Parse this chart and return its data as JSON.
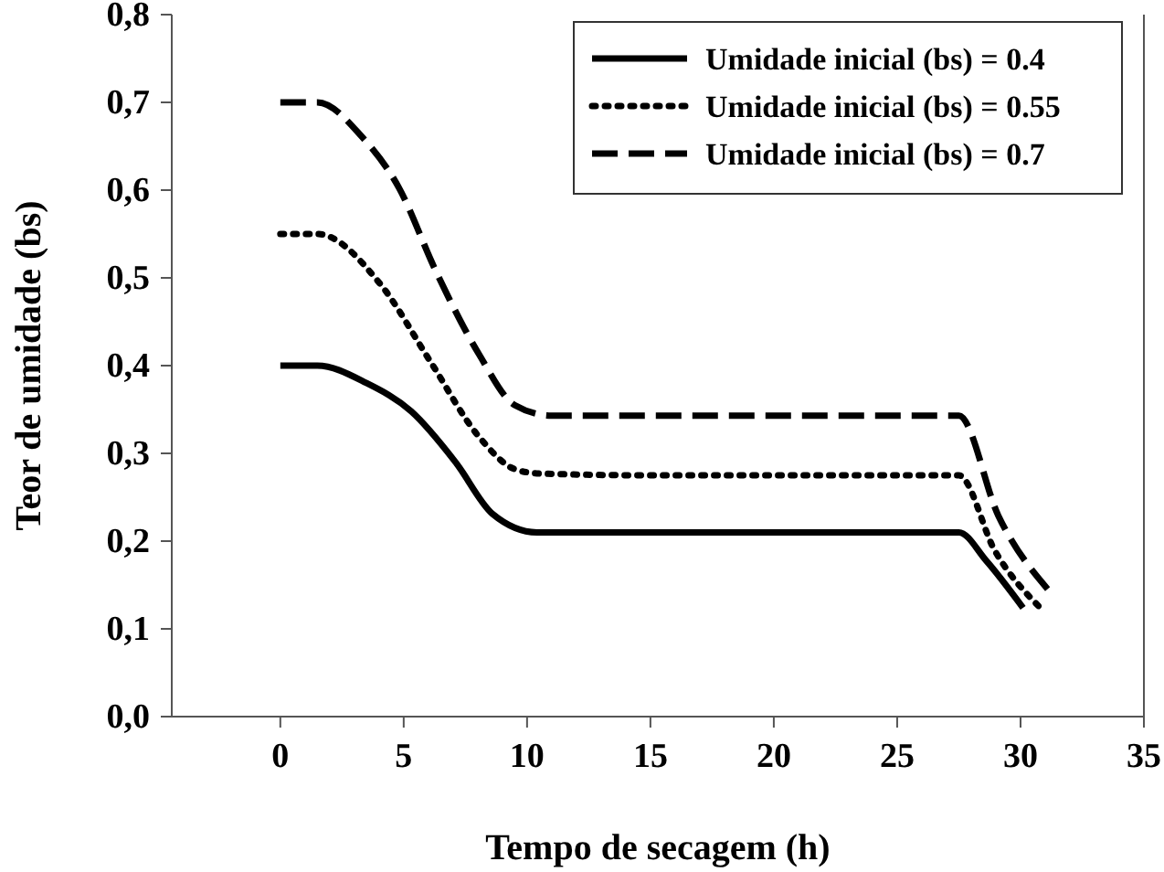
{
  "chart_data": {
    "type": "line",
    "xlabel": "Tempo de secagem (h)",
    "ylabel": "Teor de umidade (bs)",
    "xlim": [
      -4.4,
      35
    ],
    "xticks": [
      0,
      5,
      10,
      15,
      20,
      25,
      30,
      35
    ],
    "ylim": [
      0,
      0.8
    ],
    "yticks": [
      {
        "value": 0,
        "label": "0,0"
      },
      {
        "value": 0.1,
        "label": "0,1"
      },
      {
        "value": 0.2,
        "label": "0,2"
      },
      {
        "value": 0.3,
        "label": "0,3"
      },
      {
        "value": 0.4,
        "label": "0,4"
      },
      {
        "value": 0.5,
        "label": "0,5"
      },
      {
        "value": 0.6,
        "label": "0,6"
      },
      {
        "value": 0.7,
        "label": "0,7"
      },
      {
        "value": 0.8,
        "label": "0,8"
      }
    ],
    "legend": "top right",
    "grid": false,
    "marker": "none",
    "series": [
      {
        "name": "Umidade inicial (bs) = 0.4",
        "color": "#000000",
        "line_style": "solid",
        "x": [
          0,
          1.5,
          3.5,
          5.3,
          7.1,
          8.6,
          10.4,
          15,
          20,
          25,
          27.5,
          28.6,
          30.1
        ],
        "values": [
          0.4,
          0.4,
          0.38,
          0.348,
          0.29,
          0.231,
          0.21,
          0.21,
          0.21,
          0.21,
          0.21,
          0.178,
          0.124
        ]
      },
      {
        "name": "Umidade inicial (bs) = 0.55",
        "color": "#000000",
        "line_style": "dotted",
        "x": [
          0,
          1.5,
          4.05,
          6.05,
          8.05,
          9.5,
          10.5,
          15,
          20,
          25,
          27.5,
          28.96,
          30.8
        ],
        "values": [
          0.55,
          0.55,
          0.493,
          0.406,
          0.319,
          0.282,
          0.277,
          0.275,
          0.275,
          0.275,
          0.275,
          0.189,
          0.124
        ]
      },
      {
        "name": "Umidade inicial (bs) = 0.7",
        "color": "#000000",
        "line_style": "dashed",
        "x": [
          0,
          1.5,
          3.3,
          4.8,
          6.3,
          8.05,
          9.5,
          11,
          15,
          20,
          25,
          27.5,
          29.1,
          31.2
        ],
        "values": [
          0.7,
          0.7,
          0.661,
          0.603,
          0.508,
          0.413,
          0.355,
          0.343,
          0.343,
          0.343,
          0.343,
          0.343,
          0.229,
          0.142
        ]
      }
    ]
  }
}
